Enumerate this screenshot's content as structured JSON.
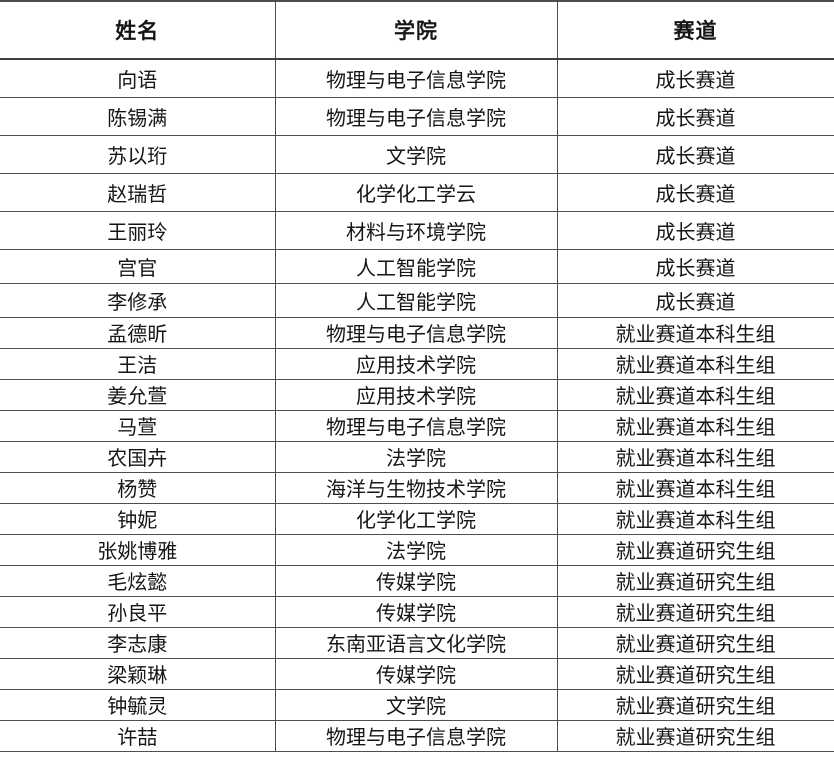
{
  "table": {
    "columns": [
      {
        "label": "姓名"
      },
      {
        "label": "学院"
      },
      {
        "label": "赛道"
      }
    ],
    "rows": [
      {
        "name": "向语",
        "college": "物理与电子信息学院",
        "track": "成长赛道"
      },
      {
        "name": "陈锡满",
        "college": "物理与电子信息学院",
        "track": "成长赛道"
      },
      {
        "name": "苏以珩",
        "college": "文学院",
        "track": "成长赛道"
      },
      {
        "name": "赵瑞哲",
        "college": "化学化工学云",
        "track": "成长赛道"
      },
      {
        "name": "王丽玲",
        "college": "材料与环境学院",
        "track": "成长赛道"
      },
      {
        "name": "宫官",
        "college": "人工智能学院",
        "track": "成长赛道"
      },
      {
        "name": "李修承",
        "college": "人工智能学院",
        "track": "成长赛道"
      },
      {
        "name": "孟德昕",
        "college": "物理与电子信息学院",
        "track": "就业赛道本科生组"
      },
      {
        "name": "王洁",
        "college": "应用技术学院",
        "track": "就业赛道本科生组"
      },
      {
        "name": "姜允萱",
        "college": "应用技术学院",
        "track": "就业赛道本科生组"
      },
      {
        "name": "马萱",
        "college": "物理与电子信息学院",
        "track": "就业赛道本科生组"
      },
      {
        "name": "农国卉",
        "college": "法学院",
        "track": "就业赛道本科生组"
      },
      {
        "name": "杨赞",
        "college": "海洋与生物技术学院",
        "track": "就业赛道本科生组"
      },
      {
        "name": "钟妮",
        "college": "化学化工学院",
        "track": "就业赛道本科生组"
      },
      {
        "name": "张姚博雅",
        "college": "法学院",
        "track": "就业赛道研究生组"
      },
      {
        "name": "毛炫懿",
        "college": "传媒学院",
        "track": "就业赛道研究生组"
      },
      {
        "name": "孙良平",
        "college": "传媒学院",
        "track": "就业赛道研究生组"
      },
      {
        "name": "李志康",
        "college": "东南亚语言文化学院",
        "track": "就业赛道研究生组"
      },
      {
        "name": "梁颖琳",
        "college": "传媒学院",
        "track": "就业赛道研究生组"
      },
      {
        "name": "钟毓灵",
        "college": "文学院",
        "track": "就业赛道研究生组"
      },
      {
        "name": "许喆",
        "college": "物理与电子信息学院",
        "track": "就业赛道研究生组"
      }
    ]
  }
}
